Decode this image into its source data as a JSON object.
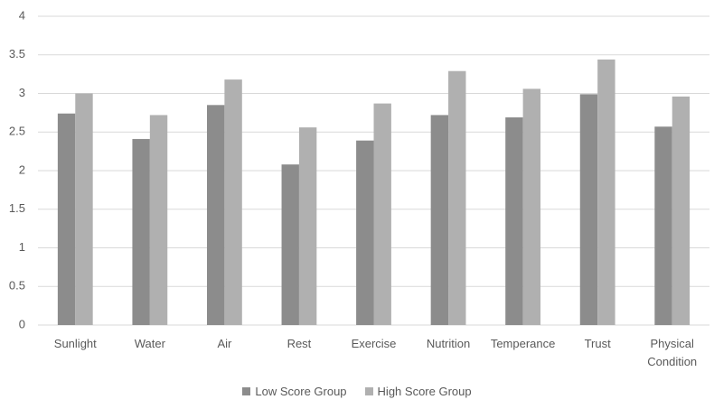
{
  "chart_data": {
    "type": "bar",
    "categories": [
      "Sunlight",
      "Water",
      "Air",
      "Rest",
      "Exercise",
      "Nutrition",
      "Temperance",
      "Trust",
      "Physical Condition"
    ],
    "series": [
      {
        "name": "Low Score Group",
        "color": "#8c8c8c",
        "values": [
          2.74,
          2.41,
          2.85,
          2.08,
          2.39,
          2.72,
          2.69,
          2.99,
          2.57
        ]
      },
      {
        "name": "High Score Group",
        "color": "#b0b0b0",
        "values": [
          3.0,
          2.72,
          3.18,
          2.56,
          2.87,
          3.29,
          3.06,
          3.44,
          2.96
        ]
      }
    ],
    "ylim": [
      0,
      4
    ],
    "yticks": [
      0,
      0.5,
      1,
      1.5,
      2,
      2.5,
      3,
      3.5,
      4
    ],
    "grid": true,
    "legend": "bottom"
  }
}
